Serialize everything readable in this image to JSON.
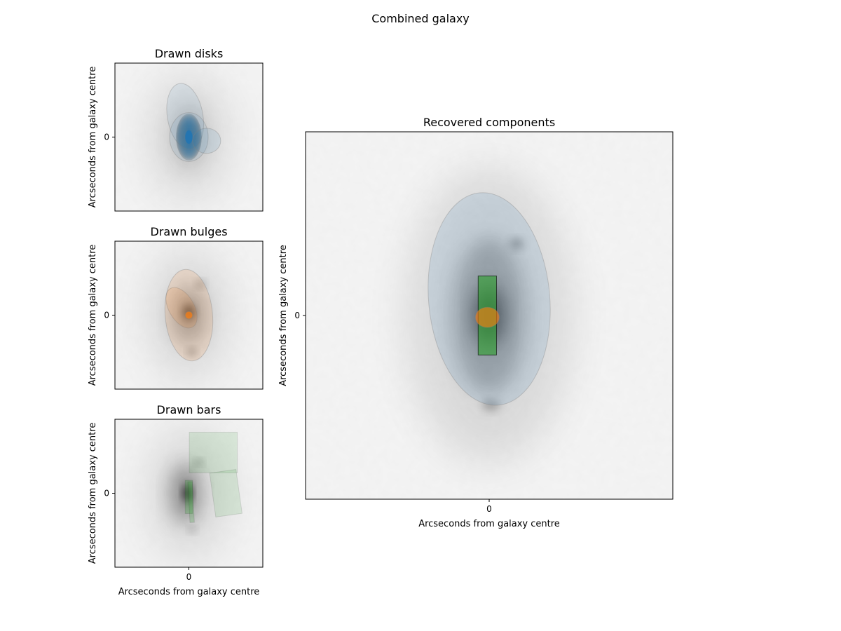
{
  "suptitle": "Combined galaxy",
  "axis_label": "Arcseconds from galaxy centre",
  "tick_zero": "0",
  "colors": {
    "disk": "#1f77b4",
    "bulge": "#ff7f0e",
    "bar": "#2ca02c",
    "edge": "#808080",
    "frame": "#000000"
  },
  "chart_data": [
    {
      "type": "image",
      "title": "Drawn disks",
      "xlabel": "",
      "ylabel": "Arcseconds from galaxy centre",
      "xticks": [],
      "yticks": [
        "0"
      ],
      "grid": false,
      "shapes": [
        {
          "kind": "ellipse",
          "cx": 0.0,
          "cy": 0.0,
          "rx": 0.17,
          "ry": 0.31,
          "rot": 0,
          "alpha": 0.1,
          "count": 24
        },
        {
          "kind": "ellipse",
          "cx": -0.05,
          "cy": 0.28,
          "rx": 0.24,
          "ry": 0.45,
          "rot": -10,
          "alpha": 0.08
        },
        {
          "kind": "ellipse",
          "cx": 0.0,
          "cy": 0.0,
          "rx": 0.26,
          "ry": 0.33,
          "rot": 0,
          "alpha": 0.08
        },
        {
          "kind": "ellipse",
          "cx": 0.24,
          "cy": -0.05,
          "rx": 0.19,
          "ry": 0.17,
          "rot": 0,
          "alpha": 0.1
        }
      ]
    },
    {
      "type": "image",
      "title": "Drawn bulges",
      "xlabel": "",
      "ylabel": "Arcseconds from galaxy centre",
      "xticks": [],
      "yticks": [
        "0"
      ],
      "grid": false,
      "shapes": [
        {
          "kind": "ellipse",
          "cx": -0.1,
          "cy": 0.1,
          "rx": 0.17,
          "ry": 0.3,
          "rot": -30,
          "alpha": 0.12
        },
        {
          "kind": "ellipse",
          "cx": 0.0,
          "cy": 0.0,
          "rx": 0.32,
          "ry": 0.62,
          "rot": -5,
          "alpha": 0.12
        },
        {
          "kind": "ellipse",
          "cx": 0.0,
          "cy": 0.0,
          "rx": 0.05,
          "ry": 0.05,
          "rot": 0,
          "alpha": 0.7
        }
      ]
    },
    {
      "type": "image",
      "title": "Drawn bars",
      "xlabel": "Arcseconds from galaxy centre",
      "ylabel": "Arcseconds from galaxy centre",
      "xticks": [
        "0"
      ],
      "yticks": [
        "0"
      ],
      "grid": false,
      "shapes": [
        {
          "kind": "rect",
          "cx": 0.33,
          "cy": 0.55,
          "w": 0.65,
          "h": 0.55,
          "rot": 0,
          "alpha": 0.12
        },
        {
          "kind": "rect",
          "cx": 0.5,
          "cy": 0.0,
          "w": 0.36,
          "h": 0.6,
          "rot": -8,
          "alpha": 0.12
        },
        {
          "kind": "rect",
          "cx": 0.0,
          "cy": -0.05,
          "w": 0.1,
          "h": 0.45,
          "rot": 0,
          "alpha": 0.25
        },
        {
          "kind": "rect",
          "cx": 0.03,
          "cy": -0.12,
          "w": 0.06,
          "h": 0.55,
          "rot": -3,
          "alpha": 0.2
        }
      ]
    },
    {
      "type": "image",
      "title": "Recovered components",
      "xlabel": "Arcseconds from galaxy centre",
      "ylabel": "Arcseconds from galaxy centre",
      "xticks": [
        "0"
      ],
      "yticks": [
        "0"
      ],
      "grid": false,
      "shapes": [
        {
          "kind": "ellipse",
          "cx": 0.0,
          "cy": 0.09,
          "rx": 0.33,
          "ry": 0.58,
          "rot": -5,
          "alpha": 0.12,
          "component": "disk"
        },
        {
          "kind": "rect",
          "cx": -0.01,
          "cy": 0.0,
          "w": 0.1,
          "h": 0.43,
          "rot": 0,
          "alpha": 0.6,
          "component": "bar"
        },
        {
          "kind": "ellipse",
          "cx": -0.01,
          "cy": -0.01,
          "rx": 0.065,
          "ry": 0.055,
          "rot": 0,
          "alpha": 0.6,
          "component": "bulge"
        }
      ]
    }
  ]
}
